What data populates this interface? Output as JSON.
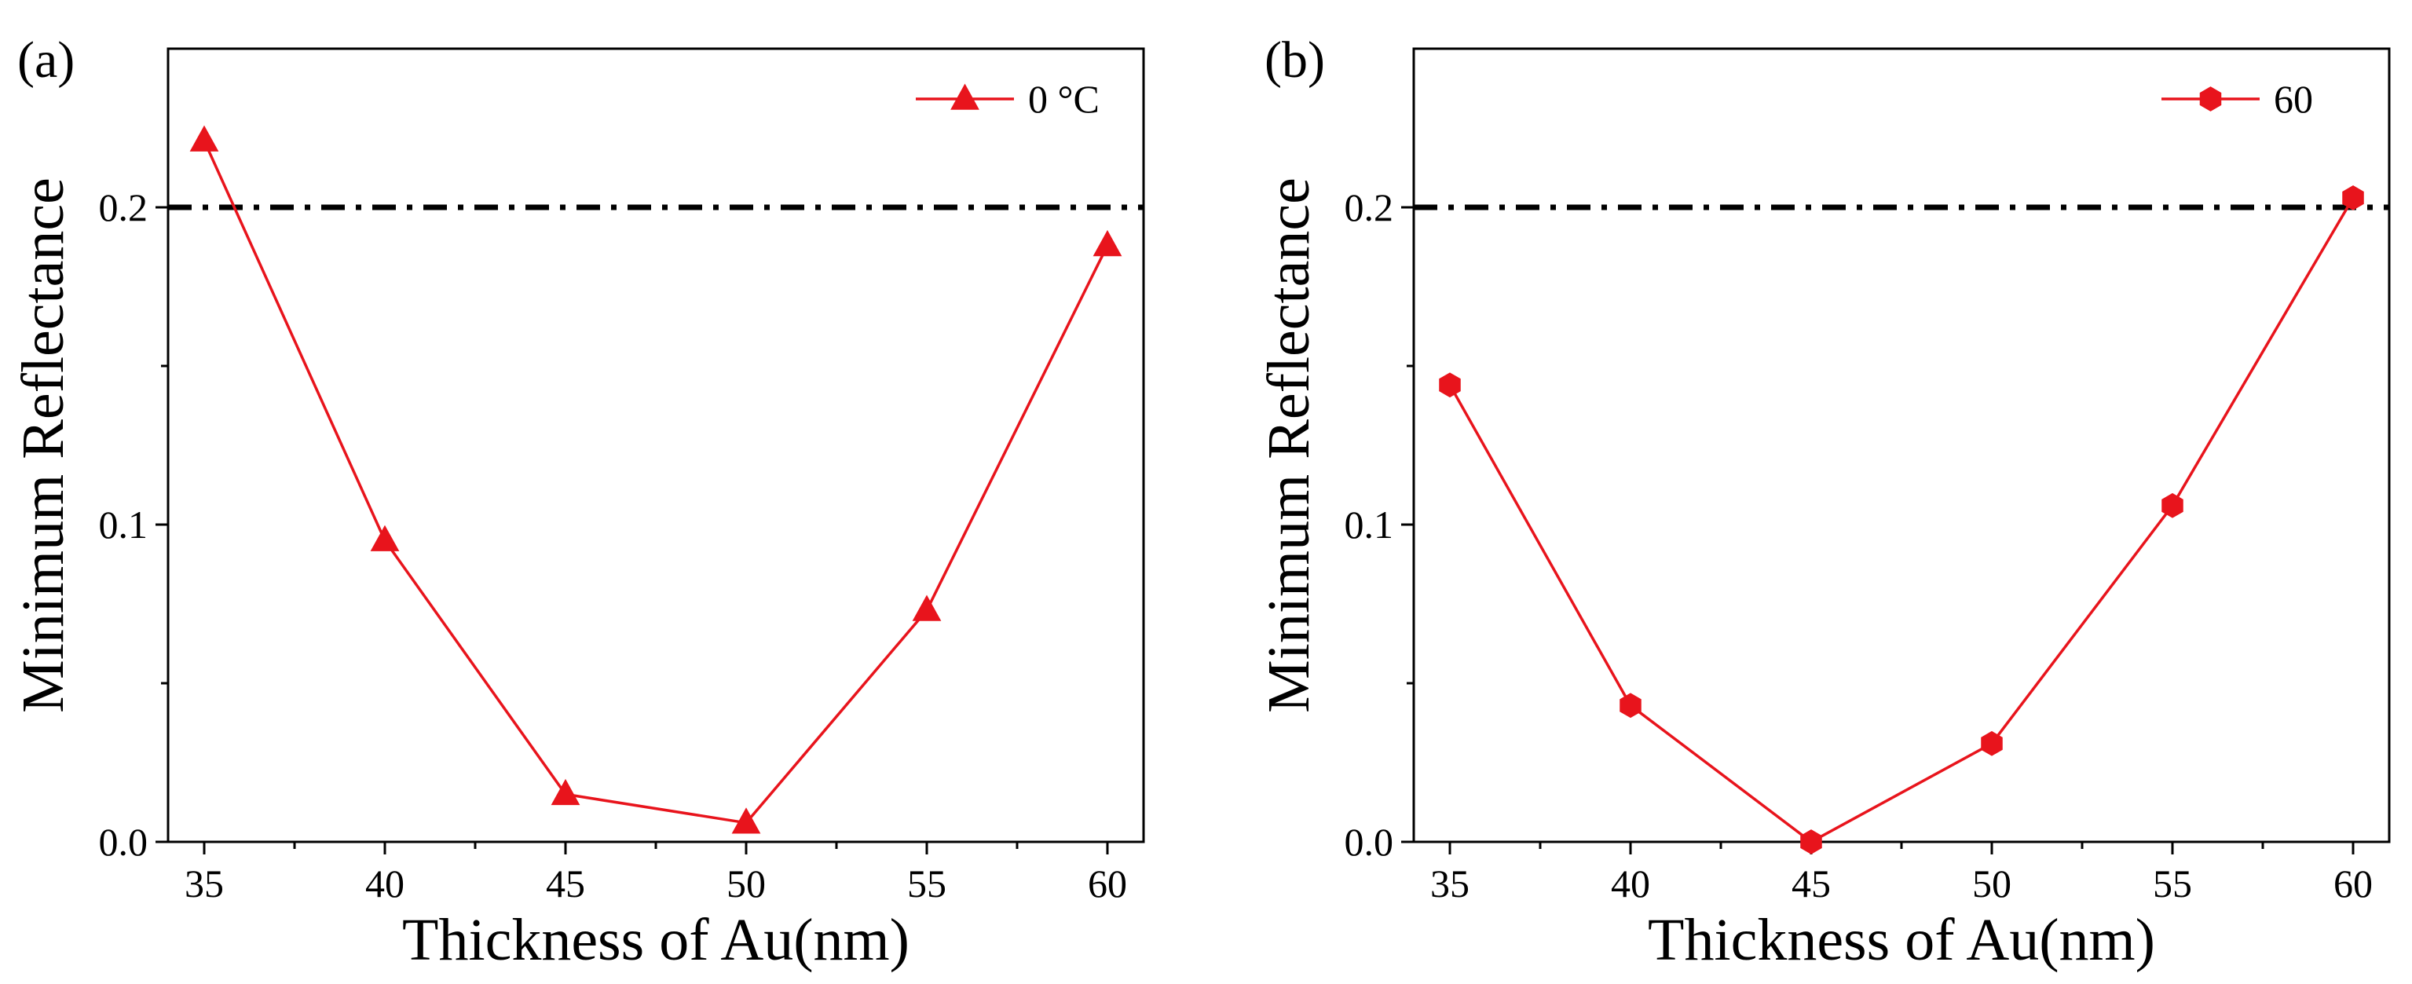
{
  "chart_data": [
    {
      "type": "line",
      "panel_label": "(a)",
      "title": "",
      "xlabel": "Thickness of Au(nm)",
      "ylabel": "Minimum Reflectance",
      "xlim": [
        34,
        61
      ],
      "ylim": [
        0,
        0.25
      ],
      "xticks": [
        35,
        40,
        45,
        50,
        55,
        60
      ],
      "xtick_labels": [
        "35",
        "40",
        "45",
        "50",
        "55",
        "60"
      ],
      "yticks": [
        0.0,
        0.1,
        0.2
      ],
      "ytick_labels": [
        "0.0",
        "0.1",
        "0.2"
      ],
      "y_minor_ticks": [
        0.05,
        0.15
      ],
      "x_minor_ticks": [
        37.5,
        42.5,
        47.5,
        52.5,
        57.5
      ],
      "grid": false,
      "legend_position": "top-right",
      "reference_line": {
        "y": 0.2,
        "style": "dash-dot",
        "color": "#000000"
      },
      "series": [
        {
          "name": "0 °C",
          "marker": "triangle",
          "color": "#e8141c",
          "x": [
            35,
            40,
            45,
            50,
            55,
            60
          ],
          "values": [
            0.221,
            0.095,
            0.015,
            0.006,
            0.073,
            0.188
          ]
        }
      ]
    },
    {
      "type": "line",
      "panel_label": "(b)",
      "title": "",
      "xlabel": "Thickness of Au(nm)",
      "ylabel": "Minimum Reflectance",
      "xlim": [
        34,
        61
      ],
      "ylim": [
        0,
        0.25
      ],
      "xticks": [
        35,
        40,
        45,
        50,
        55,
        60
      ],
      "xtick_labels": [
        "35",
        "40",
        "45",
        "50",
        "55",
        "60"
      ],
      "yticks": [
        0.0,
        0.1,
        0.2
      ],
      "ytick_labels": [
        "0.0",
        "0.1",
        "0.2"
      ],
      "y_minor_ticks": [
        0.05,
        0.15
      ],
      "x_minor_ticks": [
        37.5,
        42.5,
        47.5,
        52.5,
        57.5
      ],
      "grid": false,
      "legend_position": "top-right",
      "reference_line": {
        "y": 0.2,
        "style": "dash-dot",
        "color": "#000000"
      },
      "series": [
        {
          "name": "60",
          "marker": "hexagon",
          "color": "#e8141c",
          "x": [
            35,
            40,
            45,
            50,
            55,
            60
          ],
          "values": [
            0.144,
            0.043,
            0.0,
            0.031,
            0.106,
            0.203
          ]
        }
      ]
    }
  ]
}
